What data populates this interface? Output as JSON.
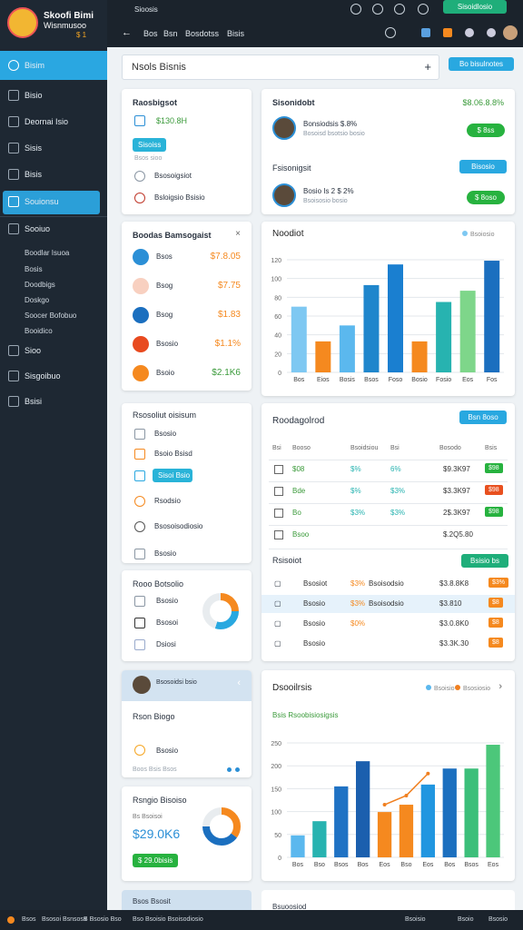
{
  "topbar": {
    "crumb": "Sioosis",
    "action": "Sisoidlosio",
    "nav": [
      "Bos",
      "Bsn",
      "Bosdotss",
      "Bisis"
    ]
  },
  "sidebar": {
    "brand": "Skoofi Bimi",
    "brand_sub": "Wisnmusoo",
    "badge": "$ 1",
    "items": [
      "Bisim",
      "Bisio",
      "Deornai Isio",
      "Sisis",
      "Bisis",
      "Souionsu",
      "Sooiuo"
    ],
    "subitems": [
      "Boodlar Isuoa",
      "Bosis",
      "Doodbigs",
      "Doskgo",
      "Soocer Bofobuo",
      "Booidico"
    ],
    "items2": [
      "Sioo",
      "Sisgoibuo",
      "Bsisi"
    ]
  },
  "search": {
    "placeholder": "Nsols Bisnis",
    "button": "Bo bisulnotes"
  },
  "card_a": {
    "title": "Raosbigsot",
    "amount": "$130.8H",
    "tag": "Sisoiss",
    "note": "Bsos sioo",
    "rows": [
      "Bsosoigsiot",
      "Bsloigsio Bsisio"
    ]
  },
  "card_b": {
    "title": "Sisonidobt",
    "stat": "$8.06.8.8%",
    "people": [
      {
        "name": "Bonsiodsis $.8%",
        "sub": "Bosoisd bsotsio bosio",
        "badge": "$ 8ss"
      }
    ],
    "section": "Fsisonigsit",
    "button": "Bisosio",
    "people2": [
      {
        "name": "Bosio Is 2 $ 2%",
        "sub": "Bsoisosio bosio",
        "badge": "$ 8oso"
      }
    ]
  },
  "card_c": {
    "title": "Boodas Bamsogaist",
    "rows": [
      {
        "label": "Bsos",
        "value": "$7.8.05"
      },
      {
        "label": "Bsog",
        "value": "$7.75"
      },
      {
        "label": "Bsog",
        "value": "$1.83"
      },
      {
        "label": "Bsosio",
        "value": "$1.1%"
      },
      {
        "label": "Bsoio",
        "value": "$2.1K6"
      }
    ]
  },
  "card_e": {
    "title": "Rsosoliut oisisum",
    "rows": [
      "Bsosio",
      "Bsoio Bsisd",
      "Sisoi Bsio",
      "Rsodsio",
      "Bsosoisodiosio",
      "Bsosio"
    ]
  },
  "card_g": {
    "title": "Rooo Botsolio",
    "rows": [
      "Bsosio",
      "Bsosoi",
      "Dsiosi"
    ]
  },
  "card_h": {
    "header": "Bsosoidsi bsio",
    "title": "Rson Biogo",
    "row": "Bsosio",
    "foot": "Boos Bsis Bsos"
  },
  "card_j": {
    "title": "Rsngio Bisoiso",
    "sub": "Bs Bsoisoi",
    "amount": "$29.0K6",
    "tag": "$ 29.0bisis"
  },
  "table": {
    "title": "Roodagolrod",
    "button": "Bsn 8oso",
    "columns": [
      "Bsi",
      "Booso",
      "Bsoidsiou",
      "Bsi",
      "Bosodo",
      "Bsis"
    ],
    "rows": [
      [
        "$08",
        "$%",
        "6%",
        "$9.3K97",
        "$98"
      ],
      [
        "Bde",
        "$%",
        "$3%",
        "$3.3K97",
        "$98"
      ],
      [
        "Bo",
        "$3%",
        "$3%",
        "2$.3K97",
        "$98"
      ],
      [
        "Bsoo",
        "",
        "",
        "$.2Q5.80",
        ""
      ]
    ],
    "section": "Rsisoiot",
    "section_button": "Bsisio bs",
    "rows2": [
      [
        "Bsosiot",
        "$3%",
        "Bsoisodsio",
        "$3.8.8K8",
        "$3%"
      ],
      [
        "Bsosio",
        "$3%",
        "Bsoisodsio",
        "$3.810",
        "$8"
      ],
      [
        "Bsosio",
        "$0%",
        "",
        "$3.0.8K0",
        "$8"
      ],
      [
        "Bsosio",
        "",
        "",
        "$3.3K.30",
        "$8"
      ]
    ]
  },
  "peek": [
    "Bsos Bsosit",
    "Bsuoosiod"
  ],
  "status": {
    "left": [
      "Bsos",
      "Bsosoi Bsnsoss",
      "B Bsosio Bso",
      "Bso Bsoisio Bsoisodiosio"
    ],
    "right": [
      "Bsoisio",
      "Bsoio",
      "Bsosio"
    ]
  },
  "chart_data": [
    {
      "type": "bar",
      "title": "Noodiot",
      "categories": [
        "Bos",
        "Eios",
        "Bosis",
        "Bsos",
        "Foso",
        "Bosio",
        "Fosio",
        "Eos",
        "Fos"
      ],
      "series": [
        {
          "name": "Bsoiosio",
          "colors": [
            "#7ec8f2",
            "#f5891f",
            "#5bb8ee",
            "#1f86cc",
            "#1a7fd0",
            "#f5891f",
            "#27b3b0",
            "#7ed68a",
            "#1b6fbf"
          ],
          "values": [
            70,
            33,
            50,
            93,
            115,
            33,
            75,
            87,
            119
          ]
        }
      ],
      "ylim": [
        0,
        120
      ],
      "yticks": [
        0,
        20,
        40,
        60,
        80,
        100,
        120
      ],
      "grid": true
    },
    {
      "type": "bar",
      "title": "Dsooilrsis",
      "subtitle": "Bsis Rsoobisiosigsis",
      "categories": [
        "Bos",
        "Bso",
        "Bsos",
        "Bos",
        "Eos",
        "Bso",
        "Eos",
        "Bos",
        "Bsos",
        "Eos"
      ],
      "series": [
        {
          "name": "Bsoisio",
          "type": "bar",
          "colors": [
            "#5bb8ee",
            "#27b3b0",
            "#1f72c4",
            "#1b5fae",
            "#f5891f",
            "#f5891f",
            "#2196e0",
            "#1b6fbf",
            "#3cbf7a",
            "#4cc77a"
          ],
          "values": [
            48,
            79,
            155,
            210,
            99,
            115,
            159,
            194,
            194,
            246
          ]
        },
        {
          "name": "Bsosiosio",
          "type": "line",
          "color": "#f07f1f",
          "values": [
            null,
            null,
            null,
            null,
            115,
            135,
            183,
            null,
            null,
            null
          ]
        }
      ],
      "ylim": [
        0,
        250
      ],
      "yticks": [
        0,
        50,
        100,
        150,
        200,
        250
      ],
      "grid": true
    }
  ]
}
